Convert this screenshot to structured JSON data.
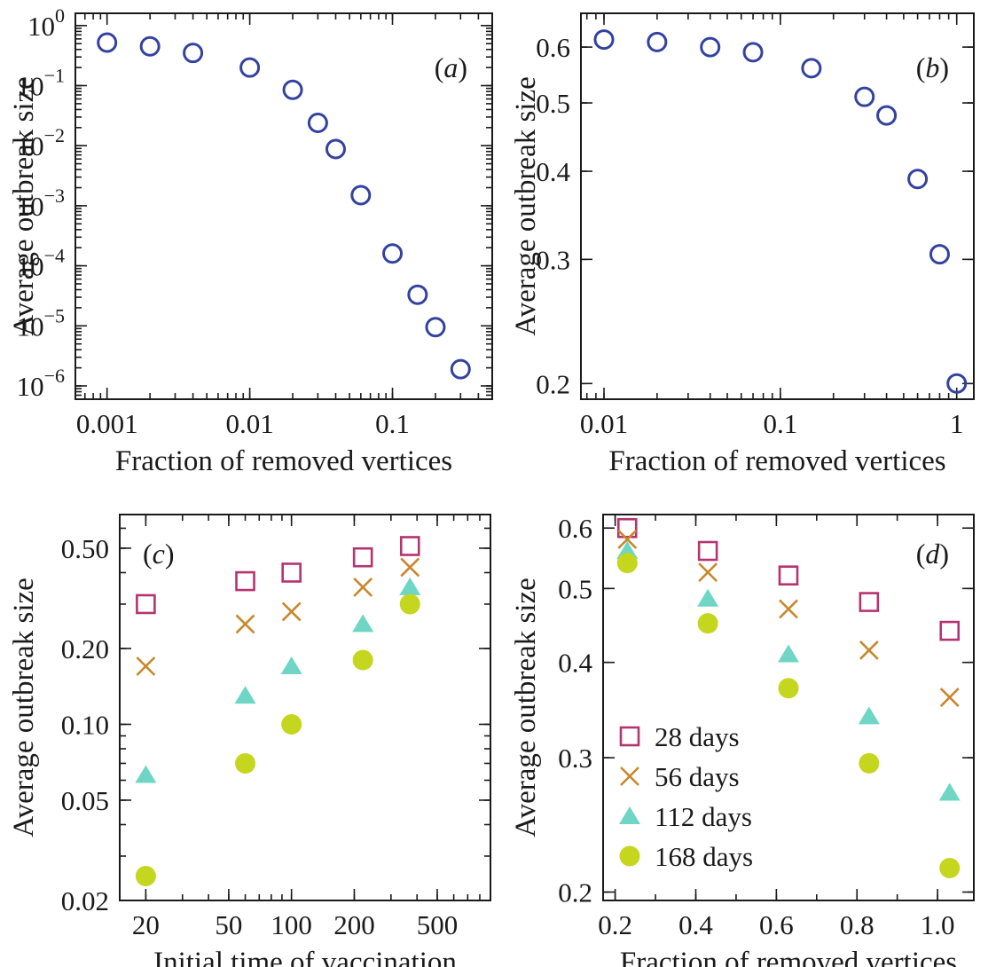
{
  "colors": {
    "circle_series": "#3342a0",
    "days28": "#b5336f",
    "days56": "#c8882c",
    "days112": "#6fd6c6",
    "days168": "#c4d61e"
  },
  "chart_data": [
    {
      "panel": "a",
      "type": "scatter",
      "panel_label": "(a)",
      "xlabel": "Fraction of removed vertices",
      "ylabel": "Average outbreak size",
      "xscale": "log",
      "yscale": "log",
      "xlim": [
        0.0006,
        0.5
      ],
      "ylim": [
        6e-07,
        1.6
      ],
      "xticks": [
        {
          "value": 0.001,
          "label": "0.001"
        },
        {
          "value": 0.01,
          "label": "0.01"
        },
        {
          "value": 0.1,
          "label": "0.1"
        }
      ],
      "yticks": [
        {
          "value": 1,
          "base": "10",
          "exp": "0"
        },
        {
          "value": 0.1,
          "base": "10",
          "exp": "−1"
        },
        {
          "value": 0.01,
          "base": "10",
          "exp": "−2"
        },
        {
          "value": 0.001,
          "base": "10",
          "exp": "−3"
        },
        {
          "value": 0.0001,
          "base": "10",
          "exp": "−4"
        },
        {
          "value": 1e-05,
          "base": "10",
          "exp": "−5"
        },
        {
          "value": 1e-06,
          "base": "10",
          "exp": "−6"
        }
      ],
      "series": [
        {
          "marker": "circle",
          "x": [
            0.001,
            0.002,
            0.004,
            0.01,
            0.02,
            0.03,
            0.04,
            0.06,
            0.1,
            0.15,
            0.2,
            0.3
          ],
          "y": [
            0.52,
            0.45,
            0.35,
            0.2,
            0.085,
            0.024,
            0.0088,
            0.0015,
            0.00016,
            3.3e-05,
            9.5e-06,
            1.9e-06
          ]
        }
      ]
    },
    {
      "panel": "b",
      "type": "scatter",
      "panel_label": "(b)",
      "xlabel": "Fraction of removed vertices",
      "ylabel": "Average outbreak size",
      "xscale": "log",
      "yscale": "log",
      "xlim": [
        0.0074,
        1.25
      ],
      "ylim": [
        0.19,
        0.67
      ],
      "xticks": [
        {
          "value": 0.01,
          "label": "0.01"
        },
        {
          "value": 0.1,
          "label": "0.1"
        },
        {
          "value": 1,
          "label": "1"
        }
      ],
      "yticks": [
        {
          "value": 0.6,
          "label": "0.6"
        },
        {
          "value": 0.5,
          "label": "0.5"
        },
        {
          "value": 0.4,
          "label": "0.4"
        },
        {
          "value": 0.3,
          "label": "0.3"
        },
        {
          "value": 0.2,
          "label": "0.2"
        }
      ],
      "series": [
        {
          "marker": "circle",
          "x": [
            0.01,
            0.02,
            0.04,
            0.07,
            0.15,
            0.3,
            0.4,
            0.6,
            0.8,
            1.0
          ],
          "y": [
            0.615,
            0.61,
            0.6,
            0.59,
            0.56,
            0.51,
            0.48,
            0.39,
            0.305,
            0.2
          ]
        }
      ]
    },
    {
      "panel": "c",
      "type": "scatter",
      "panel_label": "(c)",
      "xlabel": "Initial time of vaccination",
      "ylabel": "Average outbreak size",
      "xscale": "log",
      "yscale": "log",
      "xlim": [
        15,
        900
      ],
      "ylim": [
        0.02,
        0.68
      ],
      "xticks": [
        {
          "value": 20,
          "label": "20"
        },
        {
          "value": 50,
          "label": "50"
        },
        {
          "value": 100,
          "label": "100"
        },
        {
          "value": 200,
          "label": "200"
        },
        {
          "value": 500,
          "label": "500"
        }
      ],
      "yticks": [
        {
          "value": 0.5,
          "label": "0.50"
        },
        {
          "value": 0.2,
          "label": "0.20"
        },
        {
          "value": 0.1,
          "label": "0.10"
        },
        {
          "value": 0.05,
          "label": "0.05"
        },
        {
          "value": 0.02,
          "label": "0.02"
        }
      ],
      "series": [
        {
          "name": "28 days",
          "marker": "square",
          "x": [
            20,
            60,
            100,
            220,
            370
          ],
          "y": [
            0.3,
            0.37,
            0.4,
            0.46,
            0.51
          ]
        },
        {
          "name": "56 days",
          "marker": "x",
          "x": [
            20,
            60,
            100,
            220,
            370
          ],
          "y": [
            0.17,
            0.25,
            0.28,
            0.35,
            0.42
          ]
        },
        {
          "name": "112 days",
          "marker": "triangle",
          "x": [
            20,
            60,
            100,
            220,
            370
          ],
          "y": [
            0.063,
            0.13,
            0.17,
            0.25,
            0.35
          ]
        },
        {
          "name": "168 days",
          "marker": "dot",
          "x": [
            20,
            60,
            100,
            220,
            370
          ],
          "y": [
            0.025,
            0.07,
            0.1,
            0.18,
            0.3
          ]
        }
      ]
    },
    {
      "panel": "d",
      "type": "scatter",
      "panel_label": "(d)",
      "xlabel": "Fraction of removed vertices",
      "ylabel": "Average outbreak size",
      "xscale": "linear",
      "yscale": "log",
      "xlim": [
        0.17,
        1.09
      ],
      "ylim": [
        0.195,
        0.625
      ],
      "xticks": [
        {
          "value": 0.2,
          "label": "0.2"
        },
        {
          "value": 0.4,
          "label": "0.4"
        },
        {
          "value": 0.6,
          "label": "0.6"
        },
        {
          "value": 0.8,
          "label": "0.8"
        },
        {
          "value": 1.0,
          "label": "1.0"
        }
      ],
      "yticks": [
        {
          "value": 0.6,
          "label": "0.6"
        },
        {
          "value": 0.5,
          "label": "0.5"
        },
        {
          "value": 0.4,
          "label": "0.4"
        },
        {
          "value": 0.3,
          "label": "0.3"
        },
        {
          "value": 0.2,
          "label": "0.2"
        }
      ],
      "legend": {
        "position": "lower-left"
      },
      "series": [
        {
          "name": "28 days",
          "marker": "square",
          "x": [
            0.23,
            0.43,
            0.63,
            0.83,
            1.03
          ],
          "y": [
            0.6,
            0.56,
            0.52,
            0.48,
            0.44
          ]
        },
        {
          "name": "56 days",
          "marker": "x",
          "x": [
            0.23,
            0.43,
            0.63,
            0.83,
            1.03
          ],
          "y": [
            0.58,
            0.525,
            0.47,
            0.415,
            0.36
          ]
        },
        {
          "name": "112 days",
          "marker": "triangle",
          "x": [
            0.23,
            0.43,
            0.63,
            0.83,
            1.03
          ],
          "y": [
            0.56,
            0.485,
            0.41,
            0.34,
            0.27
          ]
        },
        {
          "name": "168 days",
          "marker": "dot",
          "x": [
            0.23,
            0.43,
            0.63,
            0.83,
            1.03
          ],
          "y": [
            0.54,
            0.45,
            0.37,
            0.295,
            0.215
          ]
        }
      ]
    }
  ]
}
